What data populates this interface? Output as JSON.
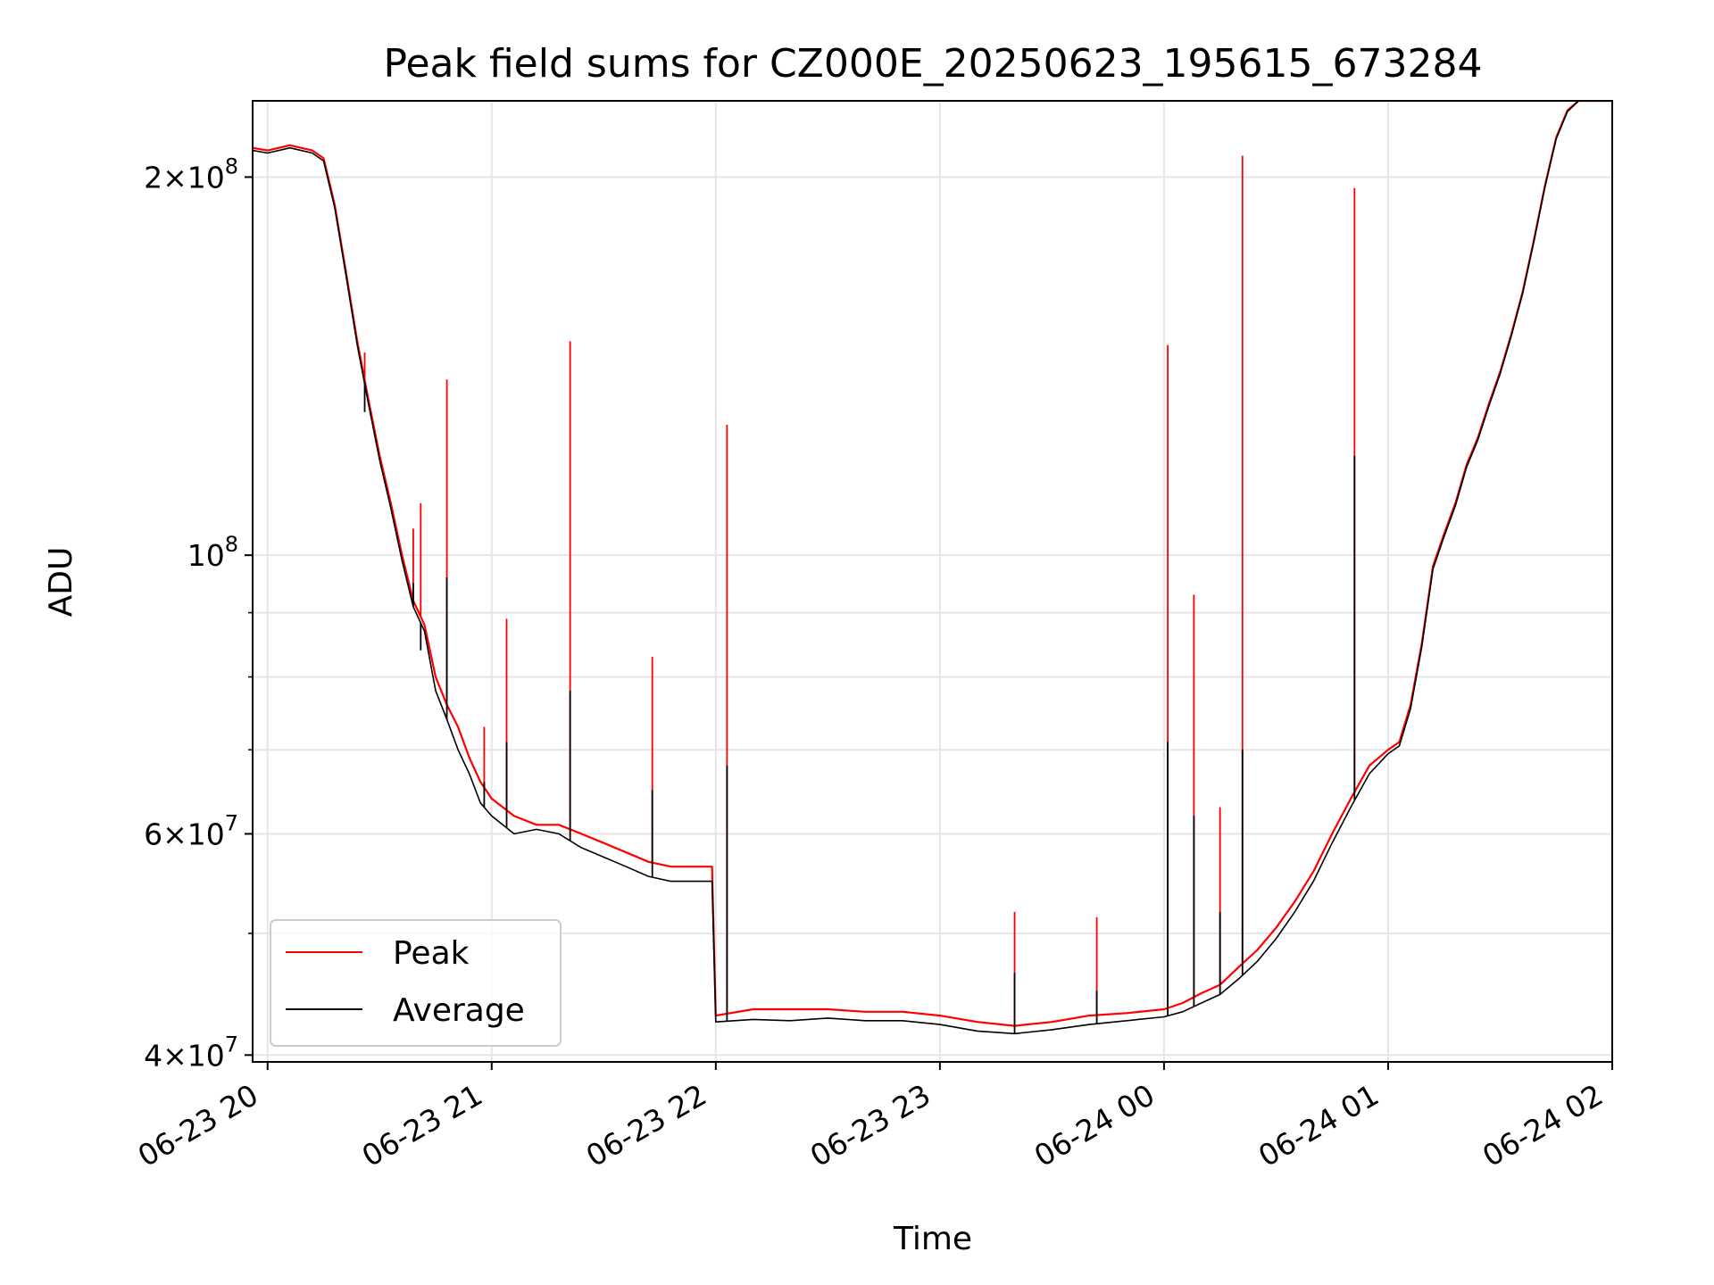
{
  "chart_data": {
    "type": "line",
    "title": "Peak field sums for CZ000E_20250623_195615_673284",
    "xlabel": "Time",
    "ylabel": "ADU",
    "x_ticks": [
      "06-23 20",
      "06-23 21",
      "06-23 22",
      "06-23 23",
      "06-24 00",
      "06-24 01",
      "06-24 02"
    ],
    "y_tick_labels": [
      {
        "value": 40000000,
        "mantissa": "4",
        "exponent": "7"
      },
      {
        "value": 60000000,
        "mantissa": "6",
        "exponent": "7"
      },
      {
        "value": 100000000,
        "mantissa": "",
        "exponent": "8"
      },
      {
        "value": 200000000,
        "mantissa": "2",
        "exponent": "8"
      }
    ],
    "y_scale": "log",
    "xlim": [
      "2025-06-23 19:56",
      "2025-06-24 02:00"
    ],
    "ylim": [
      39500000,
      230000000
    ],
    "grid": true,
    "legend": "lower-left",
    "series": [
      {
        "name": "Peak",
        "color": "#ff0000",
        "points": [
          [
            "2025-06-23 19:56",
            211000000
          ],
          [
            "2025-06-23 20:00",
            210000000
          ],
          [
            "2025-06-23 20:06",
            212000000
          ],
          [
            "2025-06-23 20:12",
            210000000
          ],
          [
            "2025-06-23 20:15",
            207000000
          ],
          [
            "2025-06-23 20:18",
            190000000
          ],
          [
            "2025-06-23 20:21",
            168000000
          ],
          [
            "2025-06-23 20:24",
            148000000
          ],
          [
            "2025-06-23 20:27",
            133000000
          ],
          [
            "2025-06-23 20:30",
            120000000
          ],
          [
            "2025-06-23 20:33",
            110000000
          ],
          [
            "2025-06-23 20:36",
            100000000
          ],
          [
            "2025-06-23 20:39",
            92000000
          ],
          [
            "2025-06-23 20:42",
            88000000
          ],
          [
            "2025-06-23 20:45",
            80000000
          ],
          [
            "2025-06-23 20:48",
            76000000
          ],
          [
            "2025-06-23 20:51",
            73000000
          ],
          [
            "2025-06-23 20:54",
            69000000
          ],
          [
            "2025-06-23 20:57",
            66000000
          ],
          [
            "2025-06-23 21:00",
            64000000
          ],
          [
            "2025-06-23 21:06",
            62000000
          ],
          [
            "2025-06-23 21:12",
            61000000
          ],
          [
            "2025-06-23 21:18",
            61000000
          ],
          [
            "2025-06-23 21:24",
            60000000
          ],
          [
            "2025-06-23 21:30",
            59000000
          ],
          [
            "2025-06-23 21:36",
            58000000
          ],
          [
            "2025-06-23 21:42",
            57000000
          ],
          [
            "2025-06-23 21:48",
            56500000
          ],
          [
            "2025-06-23 21:54",
            56500000
          ],
          [
            "2025-06-23 21:59",
            56500000
          ],
          [
            "2025-06-23 22:00",
            43000000
          ],
          [
            "2025-06-23 22:10",
            43500000
          ],
          [
            "2025-06-23 22:20",
            43500000
          ],
          [
            "2025-06-23 22:30",
            43500000
          ],
          [
            "2025-06-23 22:40",
            43300000
          ],
          [
            "2025-06-23 22:50",
            43300000
          ],
          [
            "2025-06-23 23:00",
            43000000
          ],
          [
            "2025-06-23 23:10",
            42500000
          ],
          [
            "2025-06-23 23:20",
            42200000
          ],
          [
            "2025-06-23 23:30",
            42500000
          ],
          [
            "2025-06-23 23:40",
            43000000
          ],
          [
            "2025-06-23 23:50",
            43200000
          ],
          [
            "2025-06-24 00:00",
            43500000
          ],
          [
            "2025-06-24 00:05",
            44000000
          ],
          [
            "2025-06-24 00:10",
            44800000
          ],
          [
            "2025-06-24 00:15",
            45500000
          ],
          [
            "2025-06-24 00:20",
            47000000
          ],
          [
            "2025-06-24 00:25",
            48500000
          ],
          [
            "2025-06-24 00:30",
            50500000
          ],
          [
            "2025-06-24 00:35",
            53000000
          ],
          [
            "2025-06-24 00:40",
            56000000
          ],
          [
            "2025-06-24 00:45",
            60000000
          ],
          [
            "2025-06-24 00:50",
            64000000
          ],
          [
            "2025-06-24 00:55",
            68000000
          ],
          [
            "2025-06-24 01:00",
            70000000
          ],
          [
            "2025-06-24 01:03",
            71000000
          ],
          [
            "2025-06-24 01:06",
            76000000
          ],
          [
            "2025-06-24 01:09",
            85000000
          ],
          [
            "2025-06-24 01:12",
            98000000
          ],
          [
            "2025-06-24 01:15",
            104000000
          ],
          [
            "2025-06-24 01:18",
            110000000
          ],
          [
            "2025-06-24 01:21",
            118000000
          ],
          [
            "2025-06-24 01:24",
            124000000
          ],
          [
            "2025-06-24 01:27",
            132000000
          ],
          [
            "2025-06-24 01:30",
            140000000
          ],
          [
            "2025-06-24 01:33",
            150000000
          ],
          [
            "2025-06-24 01:36",
            162000000
          ],
          [
            "2025-06-24 01:39",
            178000000
          ],
          [
            "2025-06-24 01:42",
            197000000
          ],
          [
            "2025-06-24 01:45",
            215000000
          ],
          [
            "2025-06-24 01:48",
            226000000
          ],
          [
            "2025-06-24 01:51",
            230000000
          ],
          [
            "2025-06-24 02:00",
            230000000
          ]
        ],
        "spikes": [
          [
            "2025-06-23 20:26",
            145000000
          ],
          [
            "2025-06-23 20:39",
            105000000
          ],
          [
            "2025-06-23 20:41",
            110000000
          ],
          [
            "2025-06-23 20:48",
            138000000
          ],
          [
            "2025-06-23 20:58",
            73000000
          ],
          [
            "2025-06-23 21:04",
            89000000
          ],
          [
            "2025-06-23 21:21",
            148000000
          ],
          [
            "2025-06-23 21:43",
            83000000
          ],
          [
            "2025-06-23 22:03",
            127000000
          ],
          [
            "2025-06-23 23:20",
            52000000
          ],
          [
            "2025-06-23 23:42",
            51500000
          ],
          [
            "2025-06-24 00:01",
            147000000
          ],
          [
            "2025-06-24 00:08",
            93000000
          ],
          [
            "2025-06-24 00:15",
            63000000
          ],
          [
            "2025-06-24 00:21",
            208000000
          ],
          [
            "2025-06-24 00:51",
            196000000
          ]
        ]
      },
      {
        "name": "Average",
        "color": "#000000",
        "points": [
          [
            "2025-06-23 19:56",
            210000000
          ],
          [
            "2025-06-23 20:00",
            209000000
          ],
          [
            "2025-06-23 20:06",
            211000000
          ],
          [
            "2025-06-23 20:12",
            209000000
          ],
          [
            "2025-06-23 20:15",
            206000000
          ],
          [
            "2025-06-23 20:18",
            189000000
          ],
          [
            "2025-06-23 20:21",
            167000000
          ],
          [
            "2025-06-23 20:24",
            147000000
          ],
          [
            "2025-06-23 20:27",
            132000000
          ],
          [
            "2025-06-23 20:30",
            119000000
          ],
          [
            "2025-06-23 20:33",
            109000000
          ],
          [
            "2025-06-23 20:36",
            99000000
          ],
          [
            "2025-06-23 20:39",
            91000000
          ],
          [
            "2025-06-23 20:42",
            87000000
          ],
          [
            "2025-06-23 20:45",
            78000000
          ],
          [
            "2025-06-23 20:48",
            74000000
          ],
          [
            "2025-06-23 20:51",
            70000000
          ],
          [
            "2025-06-23 20:54",
            67000000
          ],
          [
            "2025-06-23 20:57",
            63500000
          ],
          [
            "2025-06-23 21:00",
            62000000
          ],
          [
            "2025-06-23 21:06",
            60000000
          ],
          [
            "2025-06-23 21:12",
            60500000
          ],
          [
            "2025-06-23 21:18",
            60000000
          ],
          [
            "2025-06-23 21:24",
            58500000
          ],
          [
            "2025-06-23 21:30",
            57500000
          ],
          [
            "2025-06-23 21:36",
            56500000
          ],
          [
            "2025-06-23 21:42",
            55500000
          ],
          [
            "2025-06-23 21:48",
            55000000
          ],
          [
            "2025-06-23 21:54",
            55000000
          ],
          [
            "2025-06-23 21:59",
            55000000
          ],
          [
            "2025-06-23 22:00",
            42500000
          ],
          [
            "2025-06-23 22:10",
            42700000
          ],
          [
            "2025-06-23 22:20",
            42600000
          ],
          [
            "2025-06-23 22:30",
            42800000
          ],
          [
            "2025-06-23 22:40",
            42600000
          ],
          [
            "2025-06-23 22:50",
            42600000
          ],
          [
            "2025-06-23 23:00",
            42300000
          ],
          [
            "2025-06-23 23:10",
            41800000
          ],
          [
            "2025-06-23 23:20",
            41600000
          ],
          [
            "2025-06-23 23:30",
            41900000
          ],
          [
            "2025-06-23 23:40",
            42300000
          ],
          [
            "2025-06-23 23:50",
            42600000
          ],
          [
            "2025-06-24 00:00",
            42900000
          ],
          [
            "2025-06-24 00:05",
            43300000
          ],
          [
            "2025-06-24 00:10",
            44000000
          ],
          [
            "2025-06-24 00:15",
            44700000
          ],
          [
            "2025-06-24 00:20",
            46000000
          ],
          [
            "2025-06-24 00:25",
            47500000
          ],
          [
            "2025-06-24 00:30",
            49500000
          ],
          [
            "2025-06-24 00:35",
            52000000
          ],
          [
            "2025-06-24 00:40",
            55000000
          ],
          [
            "2025-06-24 00:45",
            59000000
          ],
          [
            "2025-06-24 00:50",
            63000000
          ],
          [
            "2025-06-24 00:55",
            67000000
          ],
          [
            "2025-06-24 01:00",
            69500000
          ],
          [
            "2025-06-24 01:03",
            70500000
          ],
          [
            "2025-06-24 01:06",
            75500000
          ],
          [
            "2025-06-24 01:09",
            84500000
          ],
          [
            "2025-06-24 01:12",
            97500000
          ],
          [
            "2025-06-24 01:15",
            103500000
          ],
          [
            "2025-06-24 01:18",
            109500000
          ],
          [
            "2025-06-24 01:21",
            117500000
          ],
          [
            "2025-06-24 01:24",
            123500000
          ],
          [
            "2025-06-24 01:27",
            131500000
          ],
          [
            "2025-06-24 01:30",
            139500000
          ],
          [
            "2025-06-24 01:33",
            149500000
          ],
          [
            "2025-06-24 01:36",
            161500000
          ],
          [
            "2025-06-24 01:39",
            177500000
          ],
          [
            "2025-06-24 01:42",
            196500000
          ],
          [
            "2025-06-24 01:45",
            214500000
          ],
          [
            "2025-06-24 01:48",
            225500000
          ],
          [
            "2025-06-24 01:51",
            230000000
          ],
          [
            "2025-06-24 02:00",
            230000000
          ]
        ],
        "spikes": [
          [
            "2025-06-23 20:26",
            130000000
          ],
          [
            "2025-06-23 20:39",
            95000000
          ],
          [
            "2025-06-23 20:41",
            84000000
          ],
          [
            "2025-06-23 20:48",
            96000000
          ],
          [
            "2025-06-23 20:58",
            66000000
          ],
          [
            "2025-06-23 21:04",
            71000000
          ],
          [
            "2025-06-23 21:21",
            78000000
          ],
          [
            "2025-06-23 21:43",
            65000000
          ],
          [
            "2025-06-23 22:03",
            68000000
          ],
          [
            "2025-06-23 23:20",
            46500000
          ],
          [
            "2025-06-23 23:42",
            45000000
          ],
          [
            "2025-06-24 00:01",
            71000000
          ],
          [
            "2025-06-24 00:08",
            62000000
          ],
          [
            "2025-06-24 00:15",
            52000000
          ],
          [
            "2025-06-24 00:21",
            70000000
          ],
          [
            "2025-06-24 00:51",
            120000000
          ]
        ]
      }
    ]
  }
}
